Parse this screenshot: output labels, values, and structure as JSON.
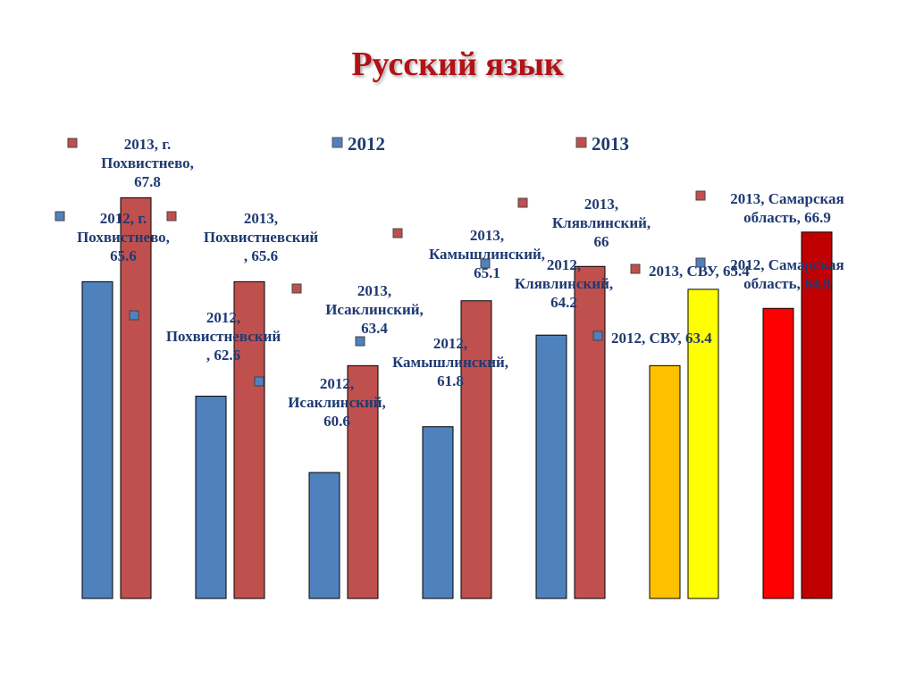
{
  "title": "Русский язык",
  "chart_data": {
    "type": "bar",
    "title": "Русский язык",
    "categories": [
      "г. Похвистнево",
      "Похвистневский",
      "Исаклинский",
      "Камышлинский",
      "Клявлинский",
      "СВУ",
      "Самарская область"
    ],
    "series": [
      {
        "name": "2012",
        "values": [
          65.6,
          62.6,
          60.6,
          61.8,
          64.2,
          63.4,
          64.9
        ]
      },
      {
        "name": "2013",
        "values": [
          67.8,
          65.6,
          63.4,
          65.1,
          66.0,
          65.4,
          66.9
        ]
      }
    ],
    "ylim": [
      57.3,
      68.3
    ],
    "grid": false,
    "legend": "top",
    "colors": {
      "2012": "#4f81bd",
      "2013": "#c0504d",
      "svu_2012": "#ffc000",
      "svu_2013": "#ffff00",
      "region_2012": "#ff0000",
      "region_2013": "#c00000"
    },
    "data_labels": [
      [
        "2012, г.",
        "Похвистнево,",
        "65.6"
      ],
      [
        "2013, г.",
        "Похвистнево,",
        "67.8"
      ],
      [
        "2012,",
        "Похвистневский",
        ", 62.6"
      ],
      [
        "2013,",
        "Похвистневский",
        ", 65.6"
      ],
      [
        "2012,",
        "Исаклинский,",
        "60.6"
      ],
      [
        "2013,",
        "Исаклинский,",
        "63.4"
      ],
      [
        "2012,",
        "Камышлинский,",
        "61.8"
      ],
      [
        "2013,",
        "Камышлинский,",
        "65.1"
      ],
      [
        "2012,",
        "Клявлинский,",
        "64.2"
      ],
      [
        "2013,",
        "Клявлинский,",
        "66"
      ],
      [
        "2012, СВУ, 63.4"
      ],
      [
        "2013, СВУ, 65.4"
      ],
      [
        "2012, Самарская",
        "область, 64.9"
      ],
      [
        "2013, Самарская",
        "область, 66.9"
      ]
    ]
  }
}
